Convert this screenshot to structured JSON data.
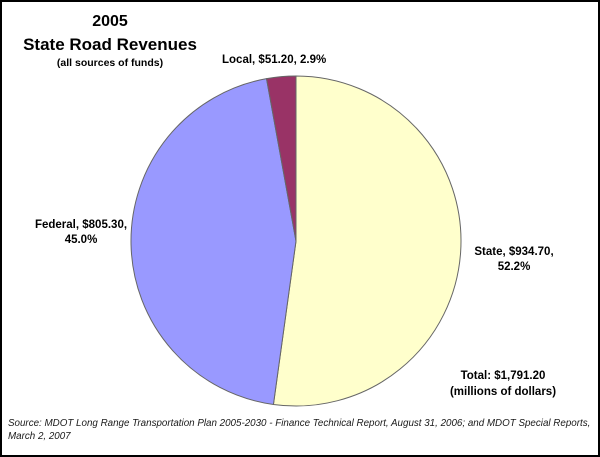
{
  "title": {
    "line1": "2005",
    "line2": "State Road Revenues",
    "subtitle": "(all sources of funds)"
  },
  "labels": {
    "local": "Local, $51.20, 2.9%",
    "federal_line1": "Federal, $805.30,",
    "federal_line2": "45.0%",
    "state_line1": "State, $934.70,",
    "state_line2": "52.2%",
    "total_line1": "Total: $1,791.20",
    "total_line2": "(millions of dollars)"
  },
  "source": {
    "line1": "Source: MDOT Long Range Transportation Plan 2005-2030 - Finance Technical Report, August 31, 2006; and MDOT Special Reports,",
    "line2": "March 2, 2007"
  },
  "chart_data": {
    "type": "pie",
    "title": "2005 State Road Revenues",
    "subtitle": "(all sources of funds)",
    "slices": [
      {
        "label": "State",
        "value": 934.7,
        "pct": "52.2%",
        "color": "#FFFFCC"
      },
      {
        "label": "Federal",
        "value": 805.3,
        "pct": "45.0%",
        "color": "#9999FF"
      },
      {
        "label": "Local",
        "value": 51.2,
        "pct": "2.9%",
        "color": "#993366"
      }
    ],
    "total": 1791.2,
    "units": "millions of dollars",
    "start": "12-oclock",
    "direction": "clockwise",
    "legend": "none",
    "stroke_color": "#666666"
  }
}
